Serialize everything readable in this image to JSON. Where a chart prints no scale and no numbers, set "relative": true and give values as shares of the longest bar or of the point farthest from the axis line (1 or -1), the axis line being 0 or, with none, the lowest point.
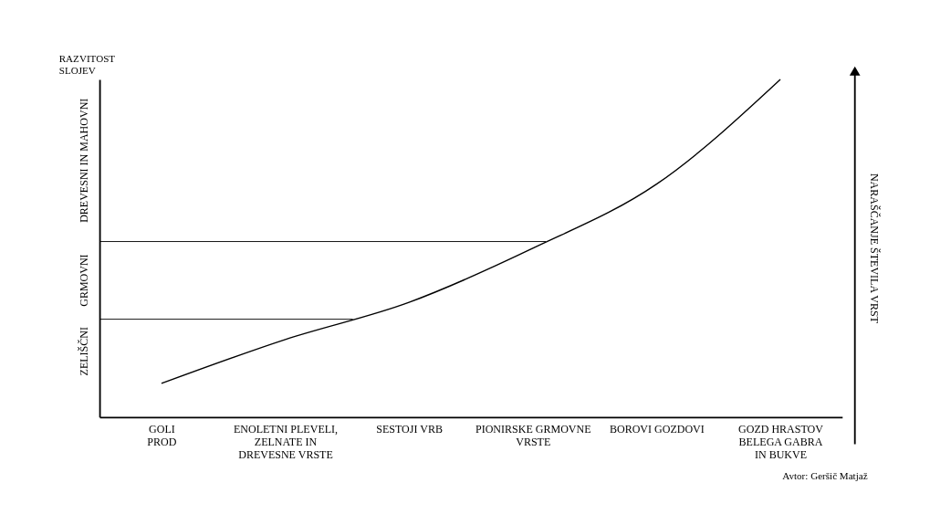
{
  "chart_data": {
    "type": "line",
    "relative": true,
    "marker": "none",
    "line_style": "solid",
    "ylabel": "RAZVITOST SLOJEV",
    "y2label": "NARAŠČANJE ŠTEVILA VRST",
    "categories": [
      "GOLI\nPROD",
      "ENOLETNI PLEVELI,\nZELNATE  IN\nDREVESNE VRSTE",
      "SESTOJI VRB",
      "PIONIRSKE GRMOVNE\nVRSTE",
      "BOROVI GOZDOVI",
      "GOZD  HRASTOV\nBELEGA GABRA\nIN BUKVE"
    ],
    "series": [
      {
        "color": "#000000",
        "values": [
          0.1,
          0.23,
          0.34,
          0.5,
          0.69,
          1.0
        ]
      }
    ],
    "ref_lines": [
      {
        "axis": "y",
        "value": 0.29,
        "color": "#000000"
      },
      {
        "axis": "y",
        "value": 0.52,
        "color": "#000000"
      }
    ],
    "annotations": [
      "ZELIŠČNI",
      "GRMOVNI",
      "DREVESNI IN MAHOVNI",
      "Avtor: Geršič Matjaž"
    ]
  }
}
